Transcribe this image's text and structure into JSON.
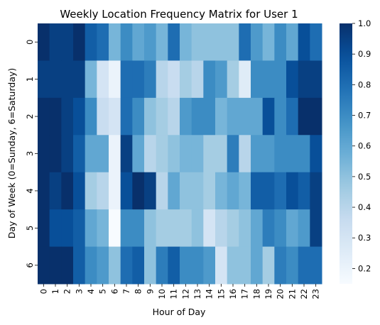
{
  "chart_data": {
    "type": "heatmap",
    "title": "Weekly Location Frequency Matrix for User 1",
    "xlabel": "Hour of Day",
    "ylabel": "Day of Week (0=Sunday, 6=Saturday)",
    "x_categories": [
      "0",
      "1",
      "2",
      "3",
      "4",
      "5",
      "6",
      "7",
      "8",
      "9",
      "10",
      "11",
      "12",
      "13",
      "14",
      "15",
      "16",
      "17",
      "18",
      "19",
      "20",
      "21",
      "22",
      "23"
    ],
    "y_categories": [
      "0",
      "1",
      "2",
      "3",
      "4",
      "5",
      "6"
    ],
    "values": [
      [
        1.0,
        0.95,
        0.95,
        1.0,
        0.85,
        0.8,
        0.55,
        0.7,
        0.6,
        0.65,
        0.55,
        0.8,
        0.55,
        0.5,
        0.5,
        0.5,
        0.5,
        0.8,
        0.65,
        0.55,
        0.7,
        0.6,
        0.9,
        0.8
      ],
      [
        0.95,
        0.95,
        0.95,
        0.95,
        0.55,
        0.3,
        0.2,
        0.8,
        0.8,
        0.75,
        0.4,
        0.35,
        0.45,
        0.4,
        0.7,
        0.65,
        0.45,
        0.25,
        0.7,
        0.7,
        0.7,
        0.9,
        0.95,
        0.95
      ],
      [
        1.0,
        1.0,
        0.95,
        0.9,
        0.7,
        0.35,
        0.3,
        0.8,
        0.7,
        0.5,
        0.45,
        0.4,
        0.65,
        0.7,
        0.7,
        0.55,
        0.6,
        0.6,
        0.6,
        0.9,
        0.7,
        0.8,
        1.0,
        1.0
      ],
      [
        1.0,
        1.0,
        0.95,
        0.85,
        0.6,
        0.6,
        0.2,
        0.95,
        0.6,
        0.4,
        0.45,
        0.5,
        0.55,
        0.55,
        0.45,
        0.45,
        0.75,
        0.4,
        0.65,
        0.65,
        0.7,
        0.7,
        0.7,
        0.9
      ],
      [
        1.0,
        0.95,
        1.0,
        0.9,
        0.45,
        0.4,
        0.2,
        0.9,
        1.0,
        0.95,
        0.4,
        0.6,
        0.5,
        0.5,
        0.45,
        0.55,
        0.6,
        0.55,
        0.85,
        0.85,
        0.8,
        0.9,
        0.85,
        0.95
      ],
      [
        1.0,
        0.9,
        0.9,
        0.85,
        0.6,
        0.55,
        0.15,
        0.7,
        0.7,
        0.5,
        0.45,
        0.45,
        0.45,
        0.5,
        0.3,
        0.4,
        0.45,
        0.5,
        0.6,
        0.75,
        0.7,
        0.6,
        0.65,
        0.95
      ],
      [
        1.0,
        1.0,
        1.0,
        0.85,
        0.7,
        0.65,
        0.5,
        0.8,
        0.85,
        0.5,
        0.75,
        0.85,
        0.7,
        0.7,
        0.65,
        0.3,
        0.5,
        0.5,
        0.6,
        0.45,
        0.75,
        0.7,
        0.8,
        0.8
      ]
    ],
    "colorbar": {
      "min": 0.15,
      "max": 1.0,
      "ticks": [
        0.2,
        0.3,
        0.4,
        0.5,
        0.6,
        0.7,
        0.8,
        0.9,
        1.0
      ]
    },
    "colormap": "Blues",
    "colors": {
      "low": "#f7fbff",
      "high": "#08306b"
    }
  }
}
